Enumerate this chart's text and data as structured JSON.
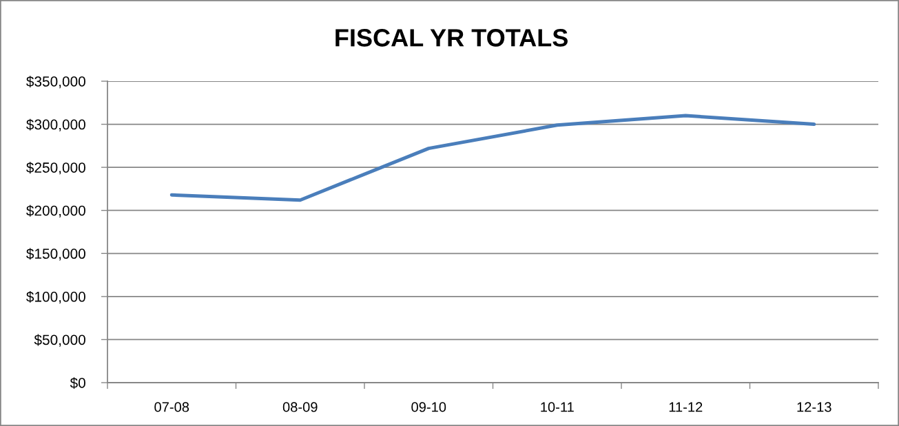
{
  "chart_data": {
    "type": "line",
    "title": "FISCAL YR TOTALS",
    "categories": [
      "07-08",
      "08-09",
      "09-10",
      "10-11",
      "11-12",
      "12-13"
    ],
    "series": [
      {
        "color": "#4a7ebb",
        "values": [
          218000,
          212000,
          272000,
          299000,
          310000,
          300000
        ]
      }
    ],
    "ylim": [
      0,
      350000
    ],
    "yticks": [
      {
        "value": 0,
        "label": "$0"
      },
      {
        "value": 50000,
        "label": "$50,000"
      },
      {
        "value": 100000,
        "label": "$100,000"
      },
      {
        "value": 150000,
        "label": "$150,000"
      },
      {
        "value": 200000,
        "label": "$200,000"
      },
      {
        "value": 250000,
        "label": "$250,000"
      },
      {
        "value": 300000,
        "label": "$300,000"
      },
      {
        "value": 350000,
        "label": "$350,000"
      }
    ],
    "grid": "y"
  }
}
